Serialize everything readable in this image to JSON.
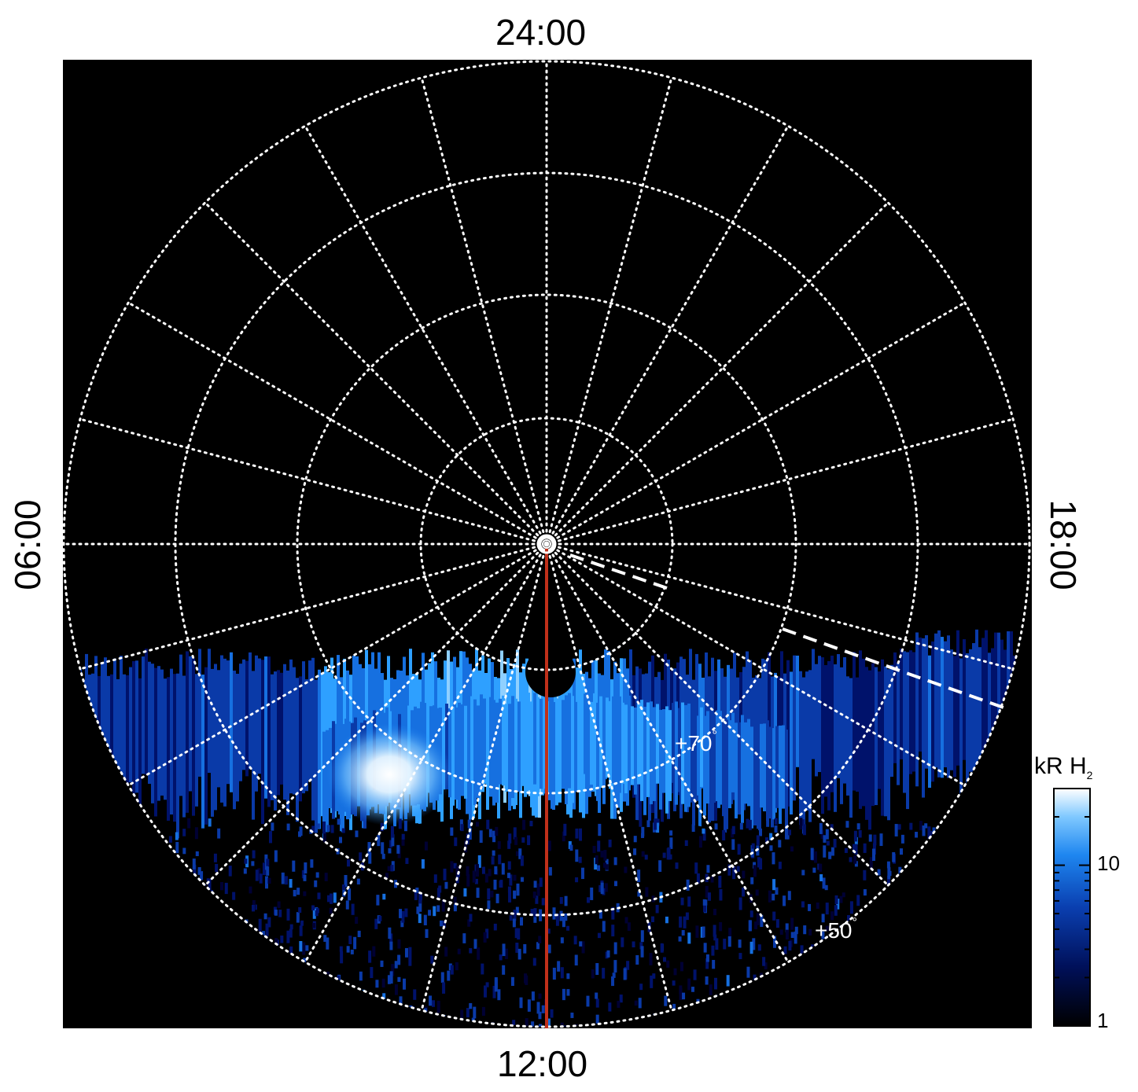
{
  "labels": {
    "top": "24:00",
    "bottom": "12:00",
    "left": "06:00",
    "right": "18:00"
  },
  "latitude_labels": {
    "lat70": "+70",
    "lat50": "+50",
    "degree_symbol": "°"
  },
  "colorbar": {
    "title_main": "kR H",
    "title_sub": "2",
    "ticks": [
      "10",
      "1"
    ],
    "colors": [
      "#000000",
      "#000033",
      "#00126b",
      "#0a3aa8",
      "#1670e0",
      "#2ea0ff",
      "#8fd0ff",
      "#ffffff"
    ]
  },
  "colors": {
    "background": "#000000",
    "grid": "#ffffff",
    "meridian": "#c0301a",
    "dashed": "#ffffff"
  }
}
